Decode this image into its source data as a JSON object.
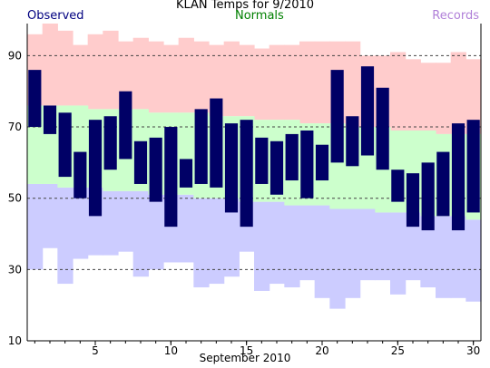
{
  "chart_data": {
    "type": "bar",
    "title": "KLAN Temps for 9/2010",
    "xlabel": "September 2010",
    "ylabel": "",
    "legend": {
      "observed": "Observed",
      "normals": "Normals",
      "records": "Records"
    },
    "colors": {
      "observed": "#000066",
      "observed_label": "#000080",
      "normals_fill": "#ccffcc",
      "normals_label": "#008000",
      "records_high_fill": "#ffcccc",
      "records_low_fill": "#ccccff",
      "records_label": "#b07fd8",
      "grid": "#444444"
    },
    "xlim": [
      0.5,
      30.5
    ],
    "ylim": [
      10,
      99
    ],
    "x_ticks": [
      5,
      10,
      15,
      20,
      25,
      30
    ],
    "y_ticks": [
      10,
      30,
      50,
      70,
      90
    ],
    "grid": "dashed horizontal at 30, 50, 70, 90",
    "days": [
      1,
      2,
      3,
      4,
      5,
      6,
      7,
      8,
      9,
      10,
      11,
      12,
      13,
      14,
      15,
      16,
      17,
      18,
      19,
      20,
      21,
      22,
      23,
      24,
      25,
      26,
      27,
      28,
      29,
      30
    ],
    "observed_high": [
      86,
      76,
      74,
      63,
      72,
      73,
      80,
      66,
      67,
      70,
      61,
      75,
      78,
      71,
      72,
      67,
      66,
      68,
      69,
      65,
      86,
      73,
      87,
      81,
      58,
      57,
      60,
      63,
      71,
      72
    ],
    "observed_low": [
      70,
      68,
      56,
      50,
      45,
      58,
      61,
      54,
      49,
      42,
      53,
      54,
      53,
      46,
      42,
      54,
      51,
      55,
      50,
      55,
      60,
      59,
      62,
      58,
      49,
      42,
      41,
      45,
      41,
      46
    ],
    "normal_high": [
      76,
      76,
      76,
      76,
      75,
      75,
      75,
      75,
      74,
      74,
      74,
      74,
      73,
      73,
      73,
      72,
      72,
      72,
      71,
      71,
      71,
      70,
      70,
      70,
      69,
      69,
      69,
      68,
      68,
      68
    ],
    "normal_low": [
      54,
      54,
      53,
      53,
      53,
      52,
      52,
      52,
      51,
      51,
      51,
      50,
      50,
      50,
      49,
      49,
      49,
      48,
      48,
      48,
      47,
      47,
      47,
      46,
      46,
      46,
      45,
      45,
      45,
      44
    ],
    "record_high": [
      96,
      99,
      97,
      93,
      96,
      97,
      94,
      95,
      94,
      93,
      95,
      94,
      93,
      94,
      93,
      92,
      93,
      93,
      94,
      94,
      94,
      94,
      90,
      90,
      91,
      89,
      88,
      88,
      91,
      89
    ],
    "record_low": [
      30,
      36,
      26,
      33,
      34,
      34,
      35,
      28,
      30,
      32,
      32,
      25,
      26,
      28,
      35,
      24,
      26,
      25,
      27,
      22,
      19,
      22,
      27,
      27,
      23,
      27,
      25,
      22,
      22,
      21
    ]
  }
}
